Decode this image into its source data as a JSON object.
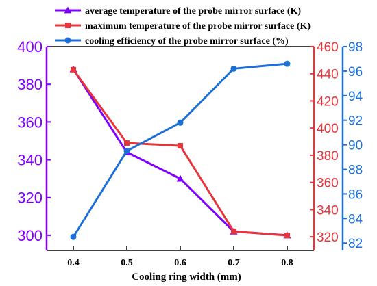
{
  "chart_data": {
    "type": "line",
    "xlabel": "Cooling ring width (mm)",
    "x": [
      0.4,
      0.5,
      0.6,
      0.7,
      0.8
    ],
    "x_ticks": [
      "0.4",
      "0.5",
      "0.6",
      "0.7",
      "0.8"
    ],
    "xlim": [
      0.35,
      0.85
    ],
    "legend_position": "top",
    "grid": false,
    "series": [
      {
        "name": "average temperature of the probe mirror surface (K)",
        "color": "#8000ff",
        "marker": "triangle",
        "axis": "left",
        "values": [
          388,
          344,
          330,
          302,
          300
        ]
      },
      {
        "name": "maximum temperature of the probe mirror surface (K)",
        "color": "#e8343a",
        "marker": "square",
        "axis": "right1",
        "values": [
          443,
          389,
          387,
          324,
          321
        ]
      },
      {
        "name": "cooling efficiency of the probe mirror surface (%)",
        "color": "#1c6fd8",
        "marker": "circle",
        "axis": "right2",
        "values": [
          82.5,
          89.5,
          91.8,
          96.2,
          96.6
        ]
      }
    ],
    "axes": {
      "left": {
        "ylim": [
          292,
          400
        ],
        "ticks": [
          300,
          320,
          340,
          360,
          380,
          400
        ],
        "color": "#8000ff"
      },
      "right1": {
        "ylim": [
          310,
          460
        ],
        "ticks": [
          320,
          340,
          360,
          380,
          400,
          420,
          440,
          460
        ],
        "color": "#e8343a"
      },
      "right2": {
        "ylim": [
          81.4,
          98
        ],
        "ticks": [
          82,
          84,
          86,
          88,
          90,
          92,
          94,
          96,
          98
        ],
        "color": "#1c6fd8"
      }
    }
  }
}
